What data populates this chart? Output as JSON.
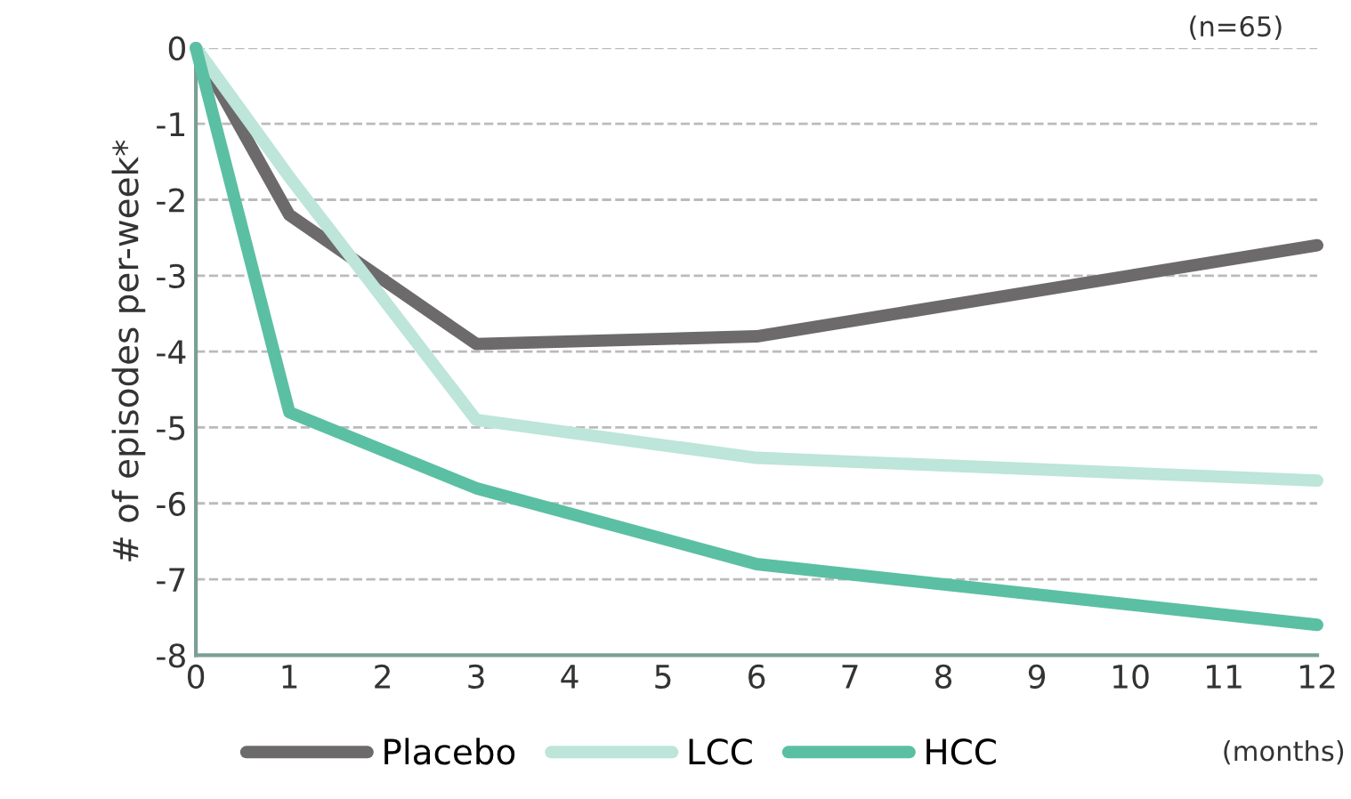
{
  "chart_data": {
    "type": "line",
    "ylabel": "# of episodes per-week*",
    "xlabel": "(months)",
    "annotations": [
      "(n=65)"
    ],
    "x": [
      0,
      1,
      3,
      6,
      12
    ],
    "series": [
      {
        "name": "Placebo",
        "color": "#6d6a6b",
        "values": [
          0,
          -2.2,
          -3.9,
          -3.8,
          -2.6
        ]
      },
      {
        "name": "LCC",
        "color": "#bde5da",
        "values": [
          0,
          -1.7,
          -4.9,
          -5.4,
          -5.7
        ]
      },
      {
        "name": "HCC",
        "color": "#5bbfa3",
        "values": [
          0,
          -4.8,
          -5.8,
          -6.8,
          -7.6
        ]
      }
    ],
    "xlim": [
      0,
      12
    ],
    "xticks": [
      0,
      1,
      2,
      3,
      4,
      5,
      6,
      7,
      8,
      9,
      10,
      11,
      12
    ],
    "ylim": [
      -8,
      0
    ],
    "yticks": [
      0,
      -1,
      -2,
      -3,
      -4,
      -5,
      -6,
      -7,
      -8
    ],
    "grid": "y",
    "legend": "bottom",
    "marker": "none",
    "line_style": "solid"
  }
}
